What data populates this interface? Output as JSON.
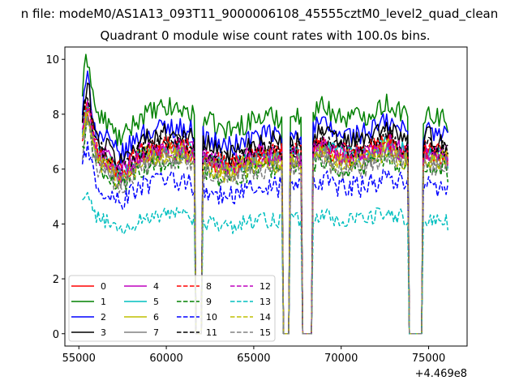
{
  "chart_data": {
    "type": "line",
    "suptitle": "n file: modeM0/AS1A13_093T11_9000006108_45555cztM0_level2_quad_clean",
    "title": "Quadrant 0 module wise count rates with 100.0s bins.",
    "xlabel": "",
    "ylabel": "",
    "x_offset_label": "+4.469e8",
    "xlim": [
      54200,
      77200
    ],
    "ylim": [
      -0.45,
      10.45
    ],
    "xticks": [
      55000,
      60000,
      65000,
      70000,
      75000
    ],
    "xtick_labels": [
      "55000",
      "60000",
      "65000",
      "70000",
      "75000"
    ],
    "yticks": [
      0,
      2,
      4,
      6,
      8,
      10
    ],
    "ytick_labels": [
      "0",
      "2",
      "4",
      "6",
      "8",
      "10"
    ],
    "legend_position": "lower-left",
    "legend_columns": 4,
    "x_start": 55200,
    "x_end": 76150,
    "bin_width": 100,
    "dips": [
      {
        "start": 61700,
        "end": 62000
      },
      {
        "start": 66700,
        "end": 67000
      },
      {
        "start": 67800,
        "end": 68300
      },
      {
        "start": 73900,
        "end": 74600
      }
    ],
    "series": [
      {
        "name": "0",
        "color": "#ff0000",
        "dashed": false,
        "mean": 6.45,
        "noise": 0.35
      },
      {
        "name": "1",
        "color": "#008000",
        "dashed": false,
        "mean": 7.9,
        "noise": 0.4
      },
      {
        "name": "2",
        "color": "#0000ff",
        "dashed": false,
        "mean": 7.25,
        "noise": 0.4
      },
      {
        "name": "3",
        "color": "#000000",
        "dashed": false,
        "mean": 7.0,
        "noise": 0.4
      },
      {
        "name": "4",
        "color": "#bf00bf",
        "dashed": false,
        "mean": 6.6,
        "noise": 0.35
      },
      {
        "name": "5",
        "color": "#00bfbf",
        "dashed": false,
        "mean": 6.5,
        "noise": 0.35
      },
      {
        "name": "6",
        "color": "#bfbf00",
        "dashed": false,
        "mean": 6.4,
        "noise": 0.35
      },
      {
        "name": "7",
        "color": "#808080",
        "dashed": false,
        "mean": 6.3,
        "noise": 0.35
      },
      {
        "name": "8",
        "color": "#ff0000",
        "dashed": true,
        "mean": 6.6,
        "noise": 0.35
      },
      {
        "name": "9",
        "color": "#008000",
        "dashed": true,
        "mean": 6.0,
        "noise": 0.35
      },
      {
        "name": "10",
        "color": "#0000ff",
        "dashed": true,
        "mean": 5.35,
        "noise": 0.4
      },
      {
        "name": "11",
        "color": "#000000",
        "dashed": true,
        "mean": 6.7,
        "noise": 0.35
      },
      {
        "name": "12",
        "color": "#bf00bf",
        "dashed": true,
        "mean": 6.45,
        "noise": 0.35
      },
      {
        "name": "13",
        "color": "#00bfbf",
        "dashed": true,
        "mean": 4.15,
        "noise": 0.3
      },
      {
        "name": "14",
        "color": "#bfbf00",
        "dashed": true,
        "mean": 6.2,
        "noise": 0.35
      },
      {
        "name": "15",
        "color": "#808080",
        "dashed": true,
        "mean": 6.0,
        "noise": 0.35
      }
    ]
  }
}
